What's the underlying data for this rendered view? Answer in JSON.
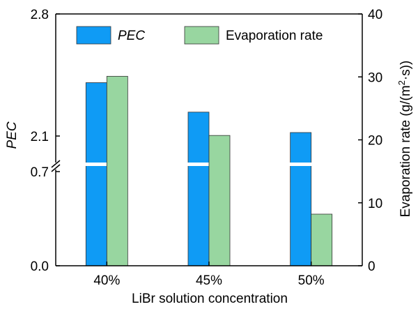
{
  "chart_data": {
    "type": "bar",
    "categories": [
      "40%",
      "45%",
      "50%"
    ],
    "xlabel": "LiBr solution concentration",
    "series": [
      {
        "name": "PEC",
        "axis": "left",
        "color": "#0f9bf5",
        "values": [
          2.406,
          2.237,
          2.12
        ]
      },
      {
        "name": "Evaporation rate",
        "axis": "right",
        "color": "#98d6a0",
        "values": [
          30.1,
          20.7,
          8.2
        ]
      }
    ],
    "left_axis": {
      "label": "PEC",
      "ticks": [
        {
          "value": 0.0,
          "label": "0.0"
        },
        {
          "value": 0.7,
          "label": "0.7"
        },
        {
          "value": 2.1,
          "label": "2.1"
        },
        {
          "value": 2.8,
          "label": "2.8"
        }
      ],
      "break": [
        0.7,
        2.1
      ]
    },
    "right_axis": {
      "label": "Evaporation rate (g/(m²·s))",
      "label_main": "Evaporation rate (g/(m",
      "label_sup": "2",
      "label_tail": "·s))",
      "ylim": [
        0,
        40
      ],
      "ticks": [
        0,
        10,
        20,
        30,
        40
      ]
    },
    "legend": {
      "placement": "top",
      "entries": [
        "PEC",
        "Evaporation rate"
      ]
    }
  }
}
